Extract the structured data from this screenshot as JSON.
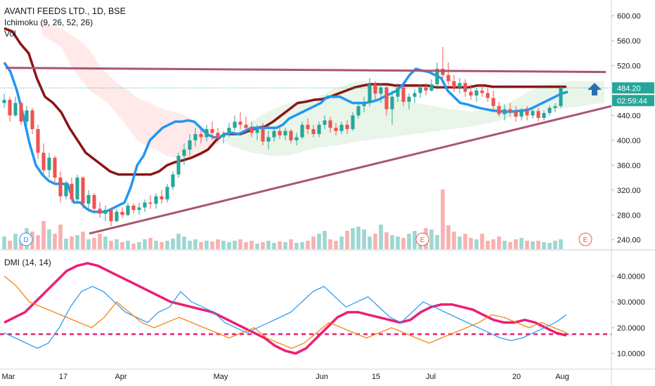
{
  "header": {
    "title": "AVANTI FEEDS LTD., 1D, BSE",
    "indicator": "Ichimoku (9, 26, 52, 26)",
    "volume_label": "Vol"
  },
  "dmi_label": "DMI (14, 14)",
  "price_tag": {
    "price": "484.20",
    "countdown": "02:59:44"
  },
  "markers": {
    "dividend": "D",
    "earnings": "E"
  },
  "colors": {
    "up": "#26a69a",
    "down": "#ef5350",
    "tenkan": "#2196f3",
    "kijun": "#8b1414",
    "cloud_bull": "#4caf50",
    "cloud_bear": "#ff5252",
    "trendline": "#a8566f",
    "adx": "#ec1e74",
    "plus_di": "#2196f3",
    "minus_di": "#f57c00",
    "arrow": "#2b6fb0"
  },
  "chart_data": [
    {
      "type": "candlestick",
      "title": "AVANTI FEEDS LTD., 1D, BSE",
      "x_ticks": [
        "Mar",
        "17",
        "Apr",
        "May",
        "Jun",
        "15",
        "Jul",
        "20",
        "Aug"
      ],
      "y_ticks": [
        "240.00",
        "280.00",
        "320.00",
        "360.00",
        "400.00",
        "440.00",
        "480.00",
        "520.00",
        "560.00",
        "600.00"
      ],
      "ylim": [
        225,
        612
      ],
      "last_price": 484.2,
      "ohlc": [
        [
          460,
          475,
          452,
          465
        ],
        [
          465,
          470,
          430,
          440
        ],
        [
          440,
          470,
          438,
          460
        ],
        [
          460,
          462,
          425,
          430
        ],
        [
          430,
          455,
          420,
          448
        ],
        [
          448,
          452,
          410,
          418
        ],
        [
          418,
          425,
          370,
          380
        ],
        [
          380,
          395,
          340,
          352
        ],
        [
          352,
          380,
          340,
          372
        ],
        [
          372,
          375,
          330,
          340
        ],
        [
          340,
          350,
          300,
          310
        ],
        [
          310,
          335,
          305,
          330
        ],
        [
          330,
          340,
          300,
          305
        ],
        [
          305,
          345,
          300,
          340
        ],
        [
          340,
          342,
          290,
          298
        ],
        [
          298,
          320,
          285,
          312
        ],
        [
          312,
          315,
          285,
          290
        ],
        [
          290,
          300,
          275,
          282
        ],
        [
          282,
          295,
          270,
          288
        ],
        [
          288,
          290,
          262,
          270
        ],
        [
          270,
          290,
          268,
          285
        ],
        [
          285,
          292,
          275,
          280
        ],
        [
          280,
          300,
          278,
          295
        ],
        [
          295,
          298,
          282,
          288
        ],
        [
          288,
          300,
          280,
          292
        ],
        [
          292,
          305,
          285,
          300
        ],
        [
          300,
          312,
          290,
          298
        ],
        [
          298,
          315,
          290,
          310
        ],
        [
          310,
          320,
          298,
          305
        ],
        [
          305,
          330,
          300,
          325
        ],
        [
          325,
          350,
          320,
          345
        ],
        [
          345,
          380,
          340,
          375
        ],
        [
          375,
          395,
          360,
          385
        ],
        [
          385,
          410,
          375,
          400
        ],
        [
          400,
          420,
          390,
          410
        ],
        [
          410,
          418,
          395,
          405
        ],
        [
          405,
          425,
          398,
          418
        ],
        [
          418,
          430,
          400,
          412
        ],
        [
          412,
          420,
          398,
          405
        ],
        [
          405,
          415,
          395,
          410
        ],
        [
          410,
          428,
          405,
          420
        ],
        [
          420,
          440,
          415,
          430
        ],
        [
          430,
          445,
          418,
          425
        ],
        [
          425,
          438,
          410,
          420
        ],
        [
          420,
          430,
          405,
          412
        ],
        [
          412,
          425,
          400,
          418
        ],
        [
          418,
          428,
          392,
          398
        ],
        [
          398,
          415,
          385,
          405
        ],
        [
          405,
          420,
          398,
          415
        ],
        [
          415,
          425,
          402,
          408
        ],
        [
          408,
          420,
          400,
          415
        ],
        [
          415,
          418,
          395,
          400
        ],
        [
          400,
          412,
          392,
          405
        ],
        [
          405,
          430,
          402,
          425
        ],
        [
          425,
          435,
          410,
          418
        ],
        [
          418,
          425,
          405,
          410
        ],
        [
          410,
          430,
          405,
          425
        ],
        [
          425,
          440,
          418,
          432
        ],
        [
          432,
          438,
          412,
          420
        ],
        [
          420,
          428,
          408,
          415
        ],
        [
          415,
          430,
          410,
          425
        ],
        [
          425,
          432,
          410,
          418
        ],
        [
          418,
          445,
          415,
          440
        ],
        [
          440,
          462,
          435,
          455
        ],
        [
          455,
          470,
          445,
          460
        ],
        [
          460,
          500,
          455,
          490
        ],
        [
          490,
          495,
          465,
          475
        ],
        [
          475,
          492,
          460,
          485
        ],
        [
          485,
          490,
          440,
          450
        ],
        [
          450,
          480,
          425,
          470
        ],
        [
          470,
          492,
          462,
          485
        ],
        [
          485,
          488,
          455,
          462
        ],
        [
          462,
          475,
          450,
          470
        ],
        [
          470,
          482,
          460,
          476
        ],
        [
          476,
          490,
          468,
          485
        ],
        [
          485,
          492,
          472,
          480
        ],
        [
          480,
          498,
          478,
          490
        ],
        [
          490,
          525,
          485,
          515
        ],
        [
          515,
          550,
          500,
          505
        ],
        [
          505,
          525,
          488,
          495
        ],
        [
          495,
          505,
          478,
          485
        ],
        [
          485,
          500,
          475,
          492
        ],
        [
          492,
          498,
          470,
          478
        ],
        [
          478,
          490,
          465,
          472
        ],
        [
          472,
          485,
          462,
          480
        ],
        [
          480,
          488,
          470,
          476
        ],
        [
          476,
          484,
          462,
          468
        ],
        [
          468,
          480,
          445,
          455
        ],
        [
          455,
          462,
          438,
          442
        ],
        [
          442,
          458,
          432,
          450
        ],
        [
          450,
          460,
          438,
          446
        ],
        [
          446,
          455,
          430,
          438
        ],
        [
          438,
          452,
          432,
          448
        ],
        [
          448,
          455,
          432,
          440
        ],
        [
          440,
          452,
          435,
          447
        ],
        [
          447,
          452,
          430,
          436
        ],
        [
          436,
          448,
          432,
          444
        ],
        [
          444,
          456,
          440,
          452
        ],
        [
          452,
          460,
          445,
          455
        ],
        [
          455,
          486,
          452,
          484
        ]
      ],
      "tenkan": [
        525,
        510,
        480,
        440,
        395,
        360,
        345,
        335,
        330,
        330,
        330,
        300,
        300,
        290,
        285,
        285,
        285,
        290,
        295,
        300,
        325,
        360,
        375,
        400,
        410,
        420,
        425,
        430,
        430,
        432,
        430,
        420,
        410,
        405,
        405,
        410,
        412,
        410,
        415,
        420,
        420,
        420,
        420,
        420,
        425,
        435,
        440,
        445,
        450,
        455,
        460,
        470,
        470,
        470,
        465,
        460,
        460,
        460,
        462,
        465,
        470,
        475,
        480,
        490,
        505,
        515,
        512,
        510,
        505,
        500,
        480,
        470,
        460,
        458,
        455,
        452,
        450,
        448,
        447,
        446,
        446,
        447,
        448,
        450,
        455,
        460,
        465,
        470,
        475,
        478
      ],
      "kijun": [
        580,
        575,
        555,
        540,
        500,
        470,
        460,
        445,
        420,
        400,
        380,
        370,
        360,
        350,
        345,
        345,
        345,
        345,
        345,
        350,
        360,
        365,
        368,
        372,
        378,
        385,
        400,
        410,
        410,
        410,
        415,
        420,
        422,
        430,
        440,
        450,
        460,
        462,
        465,
        466,
        470,
        475,
        480,
        485,
        488,
        490,
        490,
        490,
        488,
        488,
        488,
        488,
        488,
        485,
        485,
        485,
        485,
        485,
        488,
        488,
        486,
        486,
        486,
        486,
        486,
        486,
        486,
        486,
        486,
        486
      ],
      "cloud_a": [
        570,
        560,
        550,
        520,
        500,
        480,
        470,
        458,
        440,
        420,
        400,
        390,
        385,
        375,
        372,
        370,
        372,
        378,
        390,
        400,
        410,
        420,
        430,
        440,
        448,
        455,
        460,
        462,
        465,
        470,
        478,
        485,
        490,
        495,
        495,
        490,
        480,
        470,
        465,
        460,
        458,
        455,
        452,
        450,
        448,
        446,
        448,
        452,
        455,
        460,
        468,
        478,
        485,
        490,
        492,
        494,
        495,
        495,
        495,
        495
      ],
      "cloud_b": [
        590,
        585,
        580,
        570,
        560,
        545,
        520,
        505,
        490,
        480,
        468,
        462,
        455,
        448,
        445,
        440,
        430,
        420,
        410,
        400,
        390,
        385,
        380,
        378,
        375,
        375,
        376,
        380,
        385,
        388,
        390,
        392,
        395,
        398,
        400,
        402,
        404,
        406,
        408,
        410,
        412,
        414,
        416,
        418,
        420,
        422,
        425,
        428,
        432,
        436,
        440,
        444,
        446,
        448,
        450,
        452,
        454,
        456,
        458,
        460
      ],
      "volume": [
        18,
        12,
        22,
        15,
        30,
        25,
        20,
        40,
        28,
        22,
        35,
        15,
        18,
        20,
        25,
        14,
        16,
        22,
        18,
        12,
        14,
        10,
        12,
        8,
        10,
        14,
        16,
        12,
        10,
        12,
        15,
        22,
        18,
        12,
        14,
        10,
        12,
        11,
        14,
        12,
        10,
        12,
        14,
        10,
        12,
        8,
        10,
        12,
        9,
        11,
        10,
        14,
        9,
        10,
        12,
        18,
        22,
        26,
        14,
        12,
        18,
        26,
        30,
        32,
        28,
        18,
        22,
        35,
        24,
        20,
        18,
        16,
        22,
        26,
        20,
        30,
        28,
        20,
        85,
        34,
        25,
        18,
        22,
        16,
        14,
        22,
        12,
        14,
        18,
        12,
        10,
        14,
        16,
        12,
        11,
        12,
        10,
        9,
        12,
        14
      ],
      "horizontal_resistance": 512,
      "trendline": {
        "from": 250,
        "to": 455
      }
    },
    {
      "type": "line",
      "title": "DMI (14, 14)",
      "y_ticks": [
        "10.0000",
        "20.0000",
        "30.0000",
        "40.0000"
      ],
      "ylim": [
        5,
        48
      ],
      "series": [
        {
          "values": [
            22,
            24,
            26,
            30,
            34,
            38,
            42,
            44,
            45,
            44,
            42,
            40,
            38,
            36,
            34,
            32,
            30,
            29,
            28,
            27,
            26,
            24,
            22,
            20,
            18,
            16,
            13,
            11,
            10,
            12,
            16,
            20,
            24,
            26,
            26,
            25,
            24,
            23,
            22,
            23,
            26,
            28,
            29,
            29,
            28,
            27,
            25,
            23,
            22,
            22,
            23,
            22,
            20,
            18,
            17
          ]
        },
        {
          "values": [
            18,
            16,
            14,
            12,
            14,
            20,
            28,
            34,
            36,
            34,
            30,
            26,
            24,
            22,
            26,
            28,
            34,
            30,
            28,
            26,
            22,
            20,
            18,
            20,
            22,
            24,
            26,
            30,
            34,
            36,
            32,
            28,
            30,
            32,
            28,
            24,
            22,
            26,
            30,
            28,
            26,
            24,
            22,
            20,
            18,
            16,
            15,
            16,
            18,
            20,
            22,
            25
          ]
        },
        {
          "values": [
            40,
            36,
            30,
            28,
            26,
            24,
            22,
            20,
            24,
            30,
            26,
            22,
            20,
            22,
            24,
            22,
            20,
            18,
            16,
            18,
            20,
            16,
            14,
            12,
            14,
            18,
            22,
            20,
            18,
            16,
            18,
            20,
            18,
            16,
            14,
            16,
            18,
            20,
            22,
            25,
            24,
            22,
            20,
            22,
            20,
            18
          ]
        }
      ],
      "reference_line": 17.5
    }
  ]
}
